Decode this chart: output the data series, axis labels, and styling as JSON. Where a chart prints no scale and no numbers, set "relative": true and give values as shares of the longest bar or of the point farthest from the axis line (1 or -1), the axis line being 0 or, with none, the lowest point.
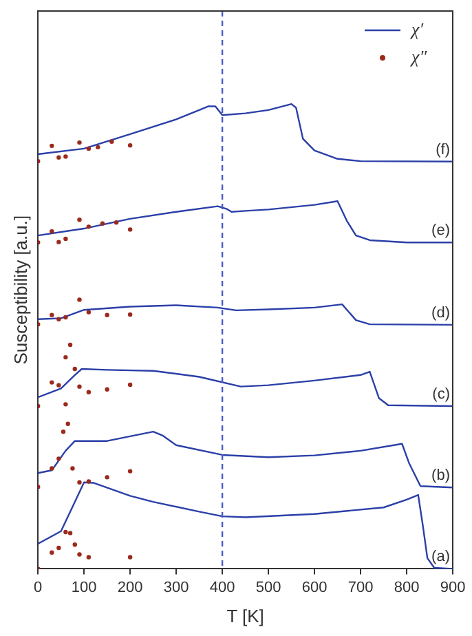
{
  "chart_data": {
    "type": "line",
    "relative": true,
    "xlabel": "T [K]",
    "ylabel": "Susceptibility [a.u.]",
    "xlim": [
      0,
      900
    ],
    "xticks": [
      0,
      100,
      200,
      300,
      400,
      500,
      600,
      700,
      800,
      900
    ],
    "legend": "top right",
    "grid": false,
    "ref_lines": [
      {
        "axis": "x",
        "value": 400,
        "color": "#4a5bc4",
        "line_style": "dashed"
      }
    ],
    "annotations": [
      "(f)",
      "(e)",
      "(d)",
      "(c)",
      "(b)",
      "(a)"
    ],
    "series": [
      {
        "name": "χ′",
        "marker": "none",
        "color": "#2b3fa8",
        "x": [
          0,
          100,
          200,
          300,
          350,
          370,
          385,
          400,
          450,
          500,
          550,
          560,
          575,
          600,
          650,
          700,
          900
        ],
        "values": [
          0.892,
          0.904,
          0.935,
          0.967,
          0.987,
          0.995,
          0.995,
          0.976,
          0.98,
          0.987,
          1,
          0.992,
          0.925,
          0.9,
          0.882,
          0.877,
          0.876
        ]
      },
      {
        "name": "χ″",
        "type": "scatter",
        "marker": "circle",
        "color": "#9b2a1c",
        "x": [
          0,
          30,
          45,
          60,
          90,
          110,
          130,
          160,
          200
        ],
        "values": [
          0.877,
          0.91,
          0.885,
          0.887,
          0.917,
          0.904,
          0.907,
          0.919,
          0.911
        ]
      },
      {
        "marker": "none",
        "color": "#2b3fa8",
        "x": [
          0,
          100,
          200,
          300,
          390,
          410,
          420,
          450,
          500,
          600,
          650,
          670,
          690,
          720,
          800,
          900
        ],
        "values": [
          0.717,
          0.732,
          0.753,
          0.768,
          0.78,
          0.774,
          0.768,
          0.77,
          0.773,
          0.783,
          0.791,
          0.749,
          0.717,
          0.707,
          0.702,
          0.702
        ]
      },
      {
        "type": "scatter",
        "marker": "circle",
        "color": "#9b2a1c",
        "x": [
          0,
          30,
          45,
          60,
          90,
          110,
          140,
          170,
          200
        ],
        "values": [
          0.702,
          0.726,
          0.703,
          0.71,
          0.751,
          0.736,
          0.743,
          0.745,
          0.73
        ]
      },
      {
        "marker": "none",
        "color": "#2b3fa8",
        "x": [
          0,
          50,
          100,
          200,
          300,
          390,
          430,
          500,
          600,
          660,
          690,
          720,
          900
        ],
        "values": [
          0.537,
          0.539,
          0.557,
          0.564,
          0.567,
          0.562,
          0.556,
          0.558,
          0.562,
          0.569,
          0.535,
          0.526,
          0.525
        ]
      },
      {
        "type": "scatter",
        "marker": "circle",
        "color": "#9b2a1c",
        "x": [
          0,
          30,
          45,
          60,
          90,
          110,
          150,
          200
        ],
        "values": [
          0.526,
          0.546,
          0.537,
          0.541,
          0.579,
          0.552,
          0.546,
          0.547
        ]
      },
      {
        "marker": "none",
        "color": "#2b3fa8",
        "x": [
          0,
          50,
          80,
          95,
          150,
          250,
          350,
          440,
          500,
          600,
          700,
          720,
          740,
          760,
          900
        ],
        "values": [
          0.369,
          0.388,
          0.417,
          0.43,
          0.428,
          0.426,
          0.413,
          0.392,
          0.395,
          0.405,
          0.417,
          0.424,
          0.367,
          0.352,
          0.35
        ]
      },
      {
        "type": "scatter",
        "marker": "circle",
        "color": "#9b2a1c",
        "x": [
          0,
          30,
          45,
          60,
          70,
          80,
          90,
          110,
          150,
          200
        ],
        "values": [
          0.35,
          0.401,
          0.395,
          0.455,
          0.482,
          0.43,
          0.392,
          0.38,
          0.386,
          0.396
        ]
      },
      {
        "marker": "none",
        "color": "#2b3fa8",
        "x": [
          0,
          30,
          60,
          80,
          150,
          250,
          270,
          300,
          400,
          500,
          600,
          700,
          790,
          805,
          830,
          900
        ],
        "values": [
          0.206,
          0.212,
          0.254,
          0.275,
          0.275,
          0.295,
          0.287,
          0.266,
          0.245,
          0.24,
          0.244,
          0.254,
          0.269,
          0.228,
          0.178,
          0.175
        ]
      },
      {
        "type": "scatter",
        "marker": "circle",
        "color": "#9b2a1c",
        "x": [
          0,
          30,
          45,
          55,
          60,
          65,
          75,
          90,
          110,
          150,
          200
        ],
        "values": [
          0.176,
          0.216,
          0.237,
          0.295,
          0.354,
          0.312,
          0.216,
          0.186,
          0.188,
          0.197,
          0.21
        ]
      },
      {
        "marker": "none",
        "color": "#2b3fa8",
        "x": [
          0,
          50,
          80,
          100,
          120,
          200,
          250,
          350,
          400,
          450,
          600,
          750,
          800,
          825,
          835,
          845,
          860,
          900
        ],
        "values": [
          0.054,
          0.081,
          0.144,
          0.186,
          0.185,
          0.157,
          0.144,
          0.123,
          0.113,
          0.111,
          0.118,
          0.132,
          0.149,
          0.159,
          0.094,
          0.023,
          0.002,
          0
        ]
      },
      {
        "type": "scatter",
        "marker": "circle",
        "color": "#9b2a1c",
        "x": [
          0,
          30,
          45,
          60,
          70,
          80,
          90,
          110,
          200
        ],
        "values": [
          0,
          0.035,
          0.045,
          0.079,
          0.077,
          0.052,
          0.031,
          0.025,
          0.025
        ]
      }
    ]
  }
}
